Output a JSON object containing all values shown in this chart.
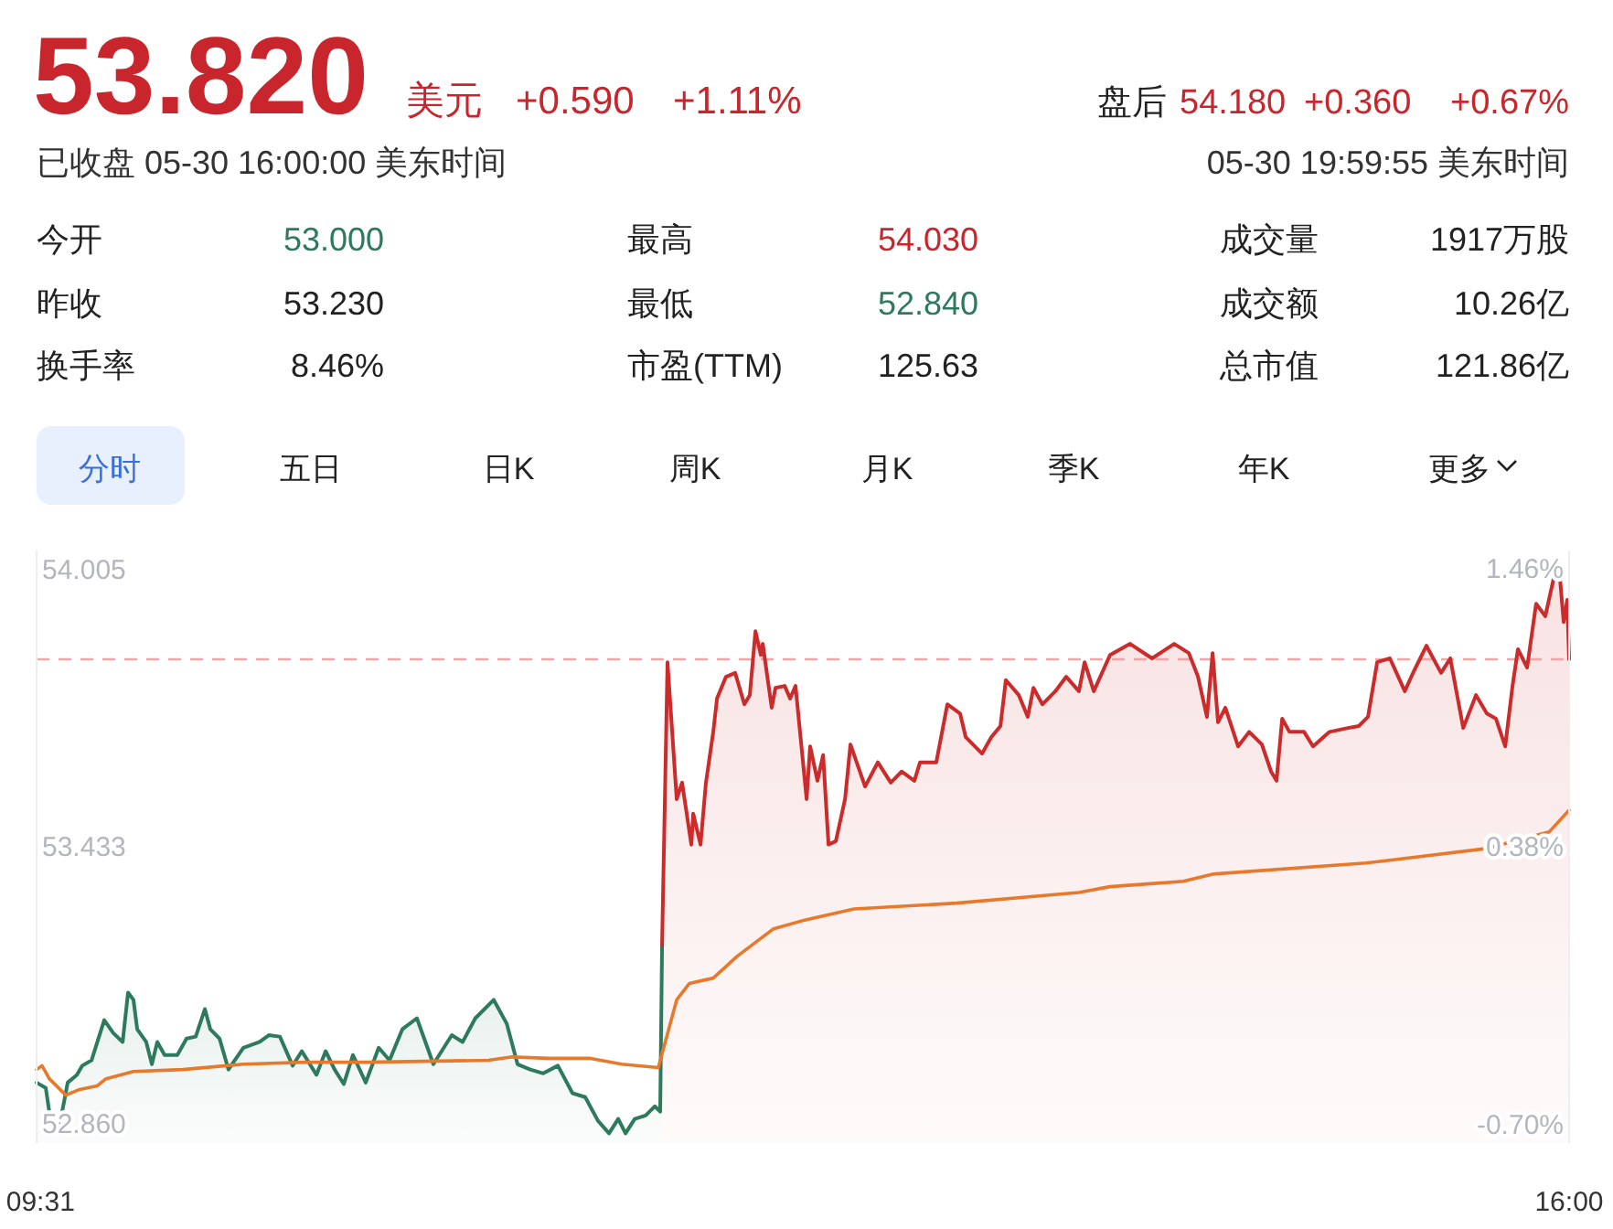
{
  "chart_data": {
    "type": "line",
    "title": "53.820",
    "annotations": [
      "美元",
      "+0.590",
      "+1.11%",
      "盘后",
      "54.180",
      "+0.360",
      "+0.67%",
      "已收盘 05-30 16:00:00 美东时间",
      "05-30 19:59:55 美东时间",
      "今开",
      "53.000",
      "最高",
      "54.030",
      "成交量",
      "1917万股",
      "昨收",
      "53.230",
      "最低",
      "52.840",
      "成交额",
      "10.26亿",
      "换手率",
      "8.46%",
      "市盈(TTM)",
      "125.63",
      "总市值",
      "121.86亿",
      "分时",
      "五日",
      "日K",
      "周K",
      "月K",
      "季K",
      "年K",
      "更多"
    ],
    "xlim": [
      9.5,
      16
    ],
    "xticks": [
      {
        "value": 9.5167,
        "label": "09:31"
      },
      {
        "value": 16,
        "label": "16:00"
      }
    ],
    "ylim": [
      52.82,
      54.045
    ],
    "yticks": [
      {
        "value": 52.86,
        "label": "52.860"
      },
      {
        "value": 53.433,
        "label": "53.433"
      },
      {
        "value": 54.005,
        "label": "54.005"
      }
    ],
    "y2lim": [
      -0.77,
      1.531
    ],
    "y2ticks": [
      {
        "value": -0.7,
        "label": "-0.70%"
      },
      {
        "value": 0.38,
        "label": "0.38%"
      },
      {
        "value": 1.46,
        "label": "1.46%"
      }
    ],
    "ref_lines": [
      {
        "axis": "y",
        "value": 53.82,
        "color": "#f4a3a3",
        "line_style": "dashed"
      }
    ],
    "series": [
      {
        "type": "area",
        "color": "#2e7a5c",
        "x": [
          9.5,
          9.539,
          9.562,
          9.593,
          9.616,
          9.632,
          9.671,
          9.694,
          9.733,
          9.787,
          9.826,
          9.865,
          9.888,
          9.911,
          9.927,
          9.965,
          9.989,
          10.012,
          10.043,
          10.097,
          10.136,
          10.175,
          10.214,
          10.237,
          10.276,
          10.314,
          10.377,
          10.446,
          10.485,
          10.532,
          10.586,
          10.625,
          10.687,
          10.726,
          10.764,
          10.803,
          10.842,
          10.896,
          10.951,
          10.997,
          11.051,
          11.113,
          11.144,
          11.183,
          11.261,
          11.307,
          11.361,
          11.439,
          11.494,
          11.54,
          11.594,
          11.649,
          11.711,
          11.773,
          11.827,
          11.881,
          11.928,
          11.967,
          11.998,
          12.037,
          12.083,
          12.122,
          12.145,
          12.153
        ],
        "values": [
          52.945,
          52.934,
          52.858,
          52.847,
          52.904,
          52.945,
          52.961,
          52.98,
          52.991,
          53.074,
          53.047,
          53.029,
          53.131,
          53.116,
          53.055,
          53.029,
          52.983,
          53.029,
          53.002,
          53.002,
          53.036,
          53.04,
          53.097,
          53.055,
          53.036,
          52.972,
          53.017,
          53.029,
          53.043,
          53.04,
          52.98,
          53.01,
          52.961,
          53.01,
          52.972,
          52.942,
          53.002,
          52.945,
          53.017,
          52.991,
          53.055,
          53.078,
          53.036,
          52.983,
          53.043,
          53.029,
          53.078,
          53.116,
          53.067,
          52.983,
          52.972,
          52.964,
          52.98,
          52.923,
          52.915,
          52.866,
          52.84,
          52.87,
          52.84,
          52.87,
          52.877,
          52.896,
          52.885,
          53.23
        ]
      },
      {
        "type": "area",
        "color": "#cc2b2b",
        "x": [
          12.153,
          12.176,
          12.215,
          12.238,
          12.277,
          12.285,
          12.316,
          12.339,
          12.37,
          12.386,
          12.424,
          12.463,
          12.502,
          12.525,
          12.549,
          12.572,
          12.58,
          12.618,
          12.634,
          12.673,
          12.696,
          12.719,
          12.766,
          12.781,
          12.812,
          12.836,
          12.859,
          12.89,
          12.929,
          12.952,
          13.014,
          13.068,
          13.123,
          13.169,
          13.223,
          13.247,
          13.316,
          13.363,
          13.417,
          13.441,
          13.51,
          13.549,
          13.588,
          13.611,
          13.666,
          13.704,
          13.728,
          13.766,
          13.821,
          13.867,
          13.921,
          13.945,
          13.984,
          14.053,
          14.138,
          14.231,
          14.325,
          14.387,
          14.426,
          14.464,
          14.488,
          14.511,
          14.542,
          14.596,
          14.643,
          14.697,
          14.736,
          14.759,
          14.783,
          14.814,
          14.876,
          14.914,
          14.984,
          15.062,
          15.108,
          15.147,
          15.186,
          15.24,
          15.303,
          15.341,
          15.395,
          15.457,
          15.496,
          15.551,
          15.605,
          15.651,
          15.69,
          15.729,
          15.76,
          15.783,
          15.822,
          15.86,
          15.899,
          15.954,
          15.977,
          15.992,
          16
        ],
        "values": [
          53.23,
          53.814,
          53.531,
          53.565,
          53.437,
          53.501,
          53.437,
          53.565,
          53.67,
          53.739,
          53.784,
          53.792,
          53.727,
          53.746,
          53.878,
          53.829,
          53.852,
          53.72,
          53.761,
          53.765,
          53.739,
          53.765,
          53.531,
          53.64,
          53.569,
          53.622,
          53.437,
          53.444,
          53.531,
          53.644,
          53.557,
          53.607,
          53.565,
          53.588,
          53.569,
          53.607,
          53.607,
          53.727,
          53.708,
          53.659,
          53.625,
          53.659,
          53.682,
          53.777,
          53.746,
          53.701,
          53.761,
          53.727,
          53.754,
          53.784,
          53.754,
          53.814,
          53.754,
          53.829,
          53.852,
          53.822,
          53.852,
          53.833,
          53.784,
          53.701,
          53.833,
          53.69,
          53.72,
          53.64,
          53.67,
          53.644,
          53.588,
          53.569,
          53.697,
          53.67,
          53.67,
          53.64,
          53.67,
          53.678,
          53.682,
          53.701,
          53.814,
          53.822,
          53.754,
          53.795,
          53.848,
          53.792,
          53.822,
          53.678,
          53.746,
          53.708,
          53.697,
          53.64,
          53.765,
          53.841,
          53.803,
          53.935,
          53.909,
          54.03,
          53.897,
          53.943,
          53.82
        ]
      },
      {
        "type": "line",
        "color": "#e8792c",
        "x": [
          9.5,
          9.523,
          9.554,
          9.624,
          9.678,
          9.756,
          9.795,
          9.911,
          10.121,
          10.377,
          10.64,
          10.896,
          11.416,
          11.517,
          11.672,
          11.85,
          11.982,
          12.137,
          12.215,
          12.269,
          12.37,
          12.471,
          12.626,
          12.758,
          12.967,
          13.402,
          13.921,
          14.053,
          14.364,
          14.488,
          15.139,
          15.263,
          15.651,
          15.915,
          16
        ],
        "values": [
          52.972,
          52.98,
          52.953,
          52.919,
          52.93,
          52.938,
          52.953,
          52.968,
          52.972,
          52.983,
          52.987,
          52.987,
          52.991,
          52.998,
          52.995,
          52.995,
          52.983,
          52.976,
          53.116,
          53.15,
          53.161,
          53.206,
          53.263,
          53.281,
          53.304,
          53.316,
          53.338,
          53.35,
          53.361,
          53.376,
          53.399,
          53.406,
          53.429,
          53.463,
          53.508
        ]
      }
    ]
  }
}
